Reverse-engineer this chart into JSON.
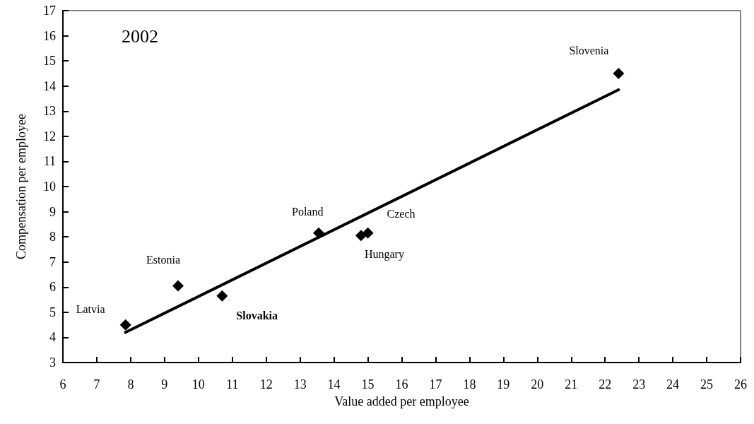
{
  "chart_data": {
    "type": "scatter",
    "xlabel": "Value added per employee",
    "ylabel": "Compensation per employee",
    "annotations": [
      "2002",
      {
        "text": "Latvia",
        "x": 7.85,
        "y": 4.5
      },
      {
        "text": "Estonia",
        "x": 9.4,
        "y": 6.05
      },
      {
        "text": "Slovakia",
        "x": 10.7,
        "y": 5.65
      },
      {
        "text": "Poland",
        "x": 13.55,
        "y": 8.15
      },
      {
        "text": "Hungary",
        "x": 14.8,
        "y": 8.05
      },
      {
        "text": "Czech",
        "x": 15.0,
        "y": 8.15
      },
      {
        "text": "Slovenia",
        "x": 22.4,
        "y": 14.5
      }
    ],
    "series": [
      {
        "color": "#000000",
        "marker": "diamond",
        "x": [
          7.85,
          9.4,
          10.7,
          13.55,
          14.8,
          15.0,
          22.4
        ],
        "values": [
          4.5,
          6.05,
          5.65,
          8.15,
          8.05,
          8.15,
          14.5
        ]
      },
      {
        "type": "line",
        "color": "#000000",
        "marker": "none",
        "line_style": "solid",
        "x": [
          7.85,
          22.4
        ],
        "values": [
          4.2,
          13.85
        ]
      }
    ],
    "xlim": [
      6,
      26
    ],
    "xticks": [
      6,
      7,
      8,
      9,
      10,
      11,
      12,
      13,
      14,
      15,
      16,
      17,
      18,
      19,
      20,
      21,
      22,
      23,
      24,
      25,
      26
    ],
    "ylim": [
      3,
      17
    ],
    "yticks": [
      3,
      4,
      5,
      6,
      7,
      8,
      9,
      10,
      11,
      12,
      13,
      14,
      15,
      16,
      17
    ],
    "grid": false
  }
}
